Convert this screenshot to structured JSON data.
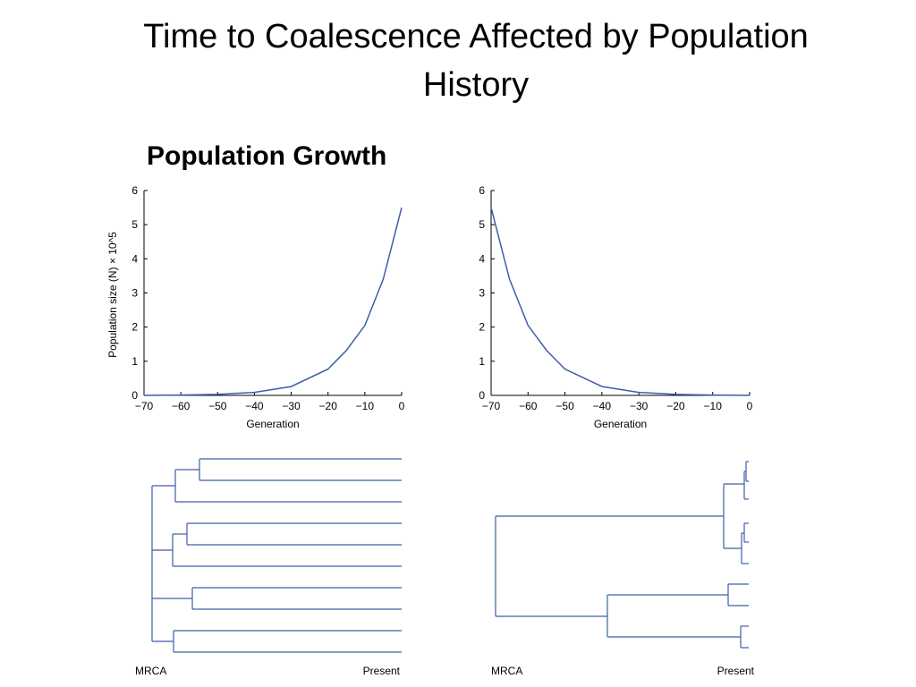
{
  "slide": {
    "title_line1": "Time to Coalescence Affected by Population",
    "title_line2": "History",
    "subtitle": "Population Growth"
  },
  "colors": {
    "curve": "#3c5fa8",
    "axes": "#000000"
  },
  "chart_data": [
    {
      "type": "line",
      "xlabel": "Generation",
      "ylabel": "Population size (N) × 10^5",
      "xlim": [
        -70,
        0
      ],
      "ylim": [
        0,
        6
      ],
      "xticks": [
        -70,
        -60,
        -50,
        -40,
        -30,
        -20,
        -10,
        0
      ],
      "yticks": [
        0,
        1,
        2,
        3,
        4,
        5,
        6
      ],
      "xtick_labels": [
        "−70",
        "−60",
        "−50",
        "−40",
        "−30",
        "−20",
        "−10",
        "0"
      ],
      "ytick_labels": [
        "0",
        "1",
        "2",
        "3",
        "4",
        "5",
        "6"
      ],
      "series": [
        {
          "x": [
            -70,
            -60,
            -50,
            -40,
            -30,
            -20,
            -15,
            -10,
            -5,
            0
          ],
          "y": [
            0.0,
            0.01,
            0.03,
            0.09,
            0.26,
            0.77,
            1.32,
            2.05,
            3.4,
            5.5
          ]
        }
      ]
    },
    {
      "type": "line",
      "xlabel": "Generation",
      "xlim": [
        -70,
        0
      ],
      "ylim": [
        0,
        6
      ],
      "xticks": [
        -70,
        -60,
        -50,
        -40,
        -30,
        -20,
        -10,
        0
      ],
      "yticks": [
        0,
        1,
        2,
        3,
        4,
        5,
        6
      ],
      "xtick_labels": [
        "−70",
        "−60",
        "−50",
        "−40",
        "−30",
        "−20",
        "−10",
        "0"
      ],
      "ytick_labels": [
        "0",
        "1",
        "2",
        "3",
        "4",
        "5",
        "6"
      ],
      "series": [
        {
          "x": [
            -70,
            -65,
            -60,
            -55,
            -50,
            -40,
            -30,
            -20,
            -10,
            0
          ],
          "y": [
            5.5,
            3.4,
            2.05,
            1.32,
            0.77,
            0.26,
            0.09,
            0.03,
            0.01,
            0.0
          ]
        }
      ]
    }
  ],
  "trees": {
    "left": {
      "start_label": "MRCA",
      "end_label": "Present"
    },
    "right": {
      "start_label": "MRCA",
      "end_label": "Present"
    }
  }
}
